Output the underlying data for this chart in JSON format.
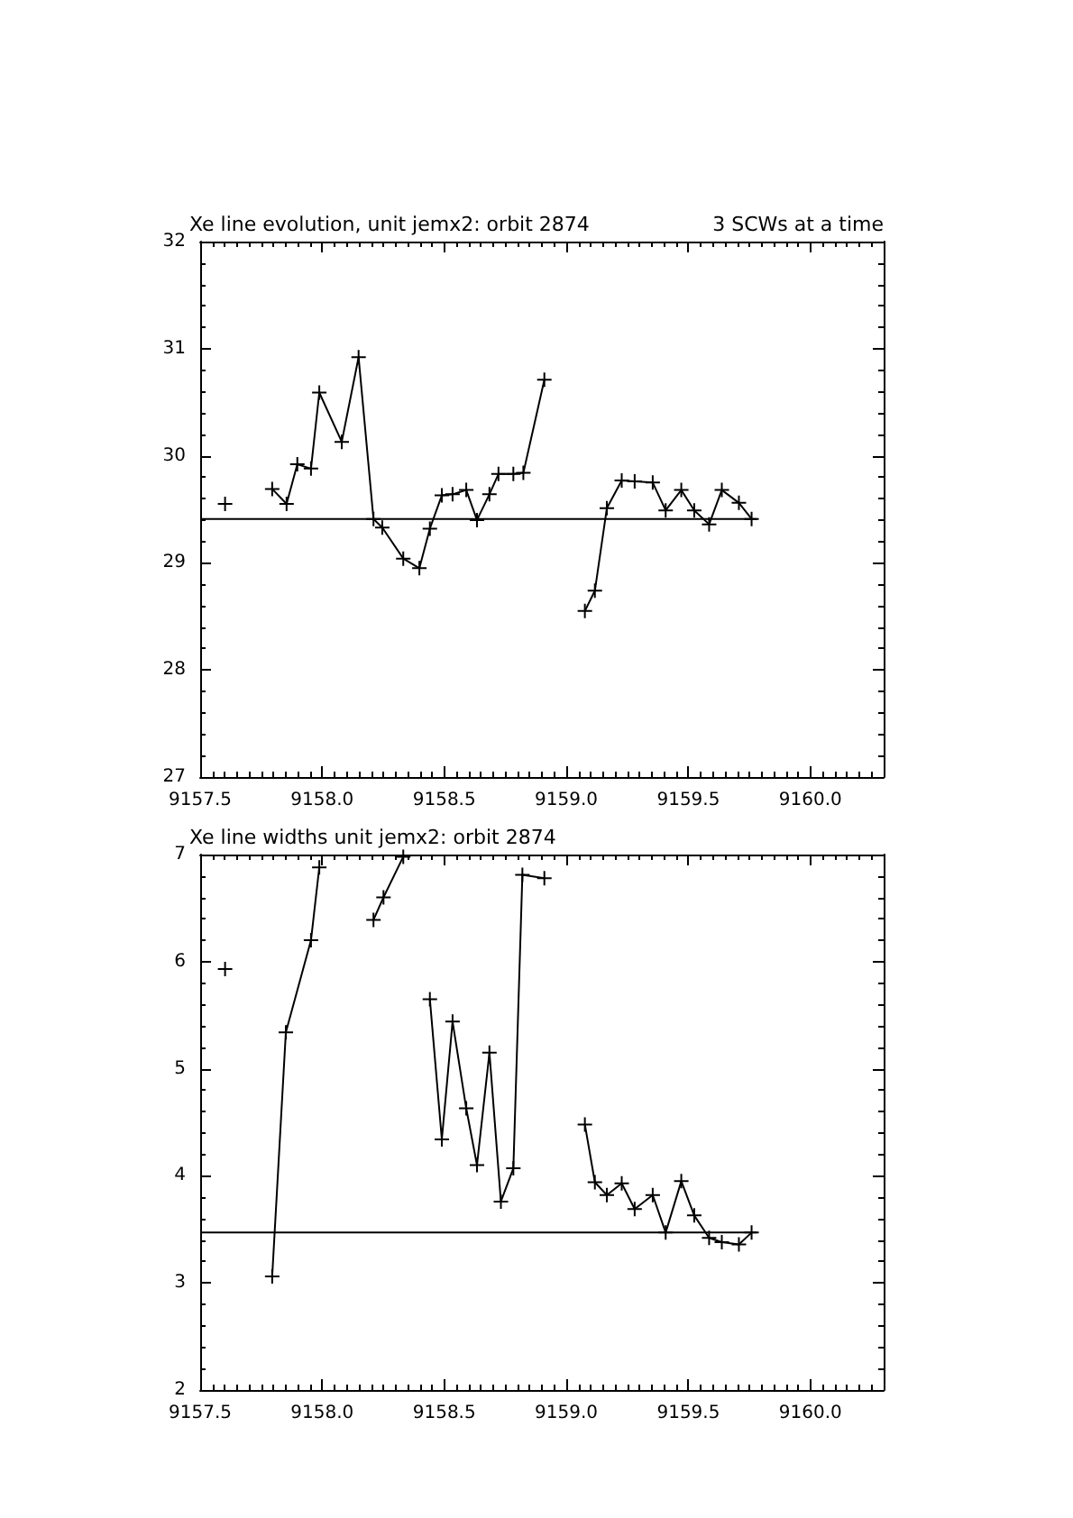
{
  "chart_data": [
    {
      "type": "line",
      "title": "Xe line evolution, unit jemx2: orbit 2874",
      "annotations": [
        "3 SCWs at a time"
      ],
      "marker": "cross",
      "line_style": "solid",
      "grid": false,
      "xlim": [
        9157.5,
        9160.3
      ],
      "xticks": [
        9157.5,
        {
          "value": 9158,
          "label": "9158.0"
        },
        9158.5,
        {
          "value": 9159,
          "label": "9159.0"
        },
        9159.5,
        {
          "value": 9160,
          "label": "9160.0"
        }
      ],
      "ylim": [
        27,
        32
      ],
      "yticks": [
        27,
        28,
        29,
        30,
        31,
        32
      ],
      "series": [
        {
          "color": "#000000",
          "x": [
            9157.602,
            9157.7,
            9157.795,
            9157.854,
            9157.898,
            9157.954,
            9157.988,
            9158.08,
            9158.149,
            9158.21,
            9158.246,
            9158.332,
            9158.398,
            9158.441,
            9158.49,
            9158.534,
            9158.59,
            9158.634,
            9158.685,
            9158.722,
            9158.783,
            9158.824,
            9158.91,
            9159.0,
            9159.076,
            9159.117,
            9159.166,
            9159.227,
            9159.28,
            9159.354,
            9159.407,
            9159.471,
            9159.524,
            9159.585,
            9159.637,
            9159.707,
            9159.759
          ],
          "values": [
            29.55,
            null,
            29.69,
            29.55,
            29.92,
            29.88,
            30.59,
            30.13,
            30.92,
            29.41,
            29.33,
            29.04,
            28.95,
            29.32,
            29.63,
            29.64,
            29.68,
            29.4,
            29.64,
            29.83,
            29.83,
            29.84,
            30.71,
            null,
            28.55,
            28.74,
            29.51,
            29.77,
            29.76,
            29.75,
            29.49,
            29.68,
            29.49,
            29.36,
            29.68,
            29.56,
            29.41
          ]
        },
        {
          "color": "#000000",
          "marker": "none",
          "x": [
            9157.5,
            9159.78
          ],
          "values": [
            29.41,
            29.41
          ]
        }
      ]
    },
    {
      "type": "line",
      "title": "Xe line widths unit jemx2: orbit 2874",
      "marker": "cross",
      "line_style": "solid",
      "grid": false,
      "xlim": [
        9157.5,
        9160.3
      ],
      "xticks": [
        9157.5,
        {
          "value": 9158,
          "label": "9158.0"
        },
        9158.5,
        {
          "value": 9159,
          "label": "9159.0"
        },
        9159.5,
        {
          "value": 9160,
          "label": "9160.0"
        }
      ],
      "ylim": [
        2,
        7
      ],
      "yticks": [
        2,
        3,
        4,
        5,
        6,
        7
      ],
      "series": [
        {
          "color": "#000000",
          "x": [
            9157.602,
            9157.7,
            9157.795,
            9157.851,
            9157.954,
            9157.988,
            9158.1,
            9158.21,
            9158.251,
            9158.332,
            9158.4,
            9158.441,
            9158.49,
            9158.534,
            9158.59,
            9158.634,
            9158.685,
            9158.732,
            9158.783,
            9158.82,
            9158.91,
            9159.0,
            9159.076,
            9159.117,
            9159.166,
            9159.227,
            9159.28,
            9159.354,
            9159.407,
            9159.471,
            9159.524,
            9159.585,
            9159.637,
            9159.707,
            9159.759
          ],
          "values": [
            5.93,
            null,
            3.06,
            5.34,
            6.2,
            6.88,
            null,
            6.39,
            6.6,
            6.98,
            null,
            5.65,
            4.34,
            5.44,
            4.63,
            4.1,
            5.15,
            3.76,
            4.07,
            6.81,
            6.78,
            null,
            4.48,
            3.94,
            3.82,
            3.93,
            3.69,
            3.82,
            3.47,
            3.95,
            3.63,
            3.42,
            3.38,
            3.36,
            3.47
          ]
        },
        {
          "color": "#000000",
          "marker": "none",
          "x": [
            9157.5,
            9159.78
          ],
          "values": [
            3.47,
            3.47
          ]
        }
      ]
    }
  ]
}
